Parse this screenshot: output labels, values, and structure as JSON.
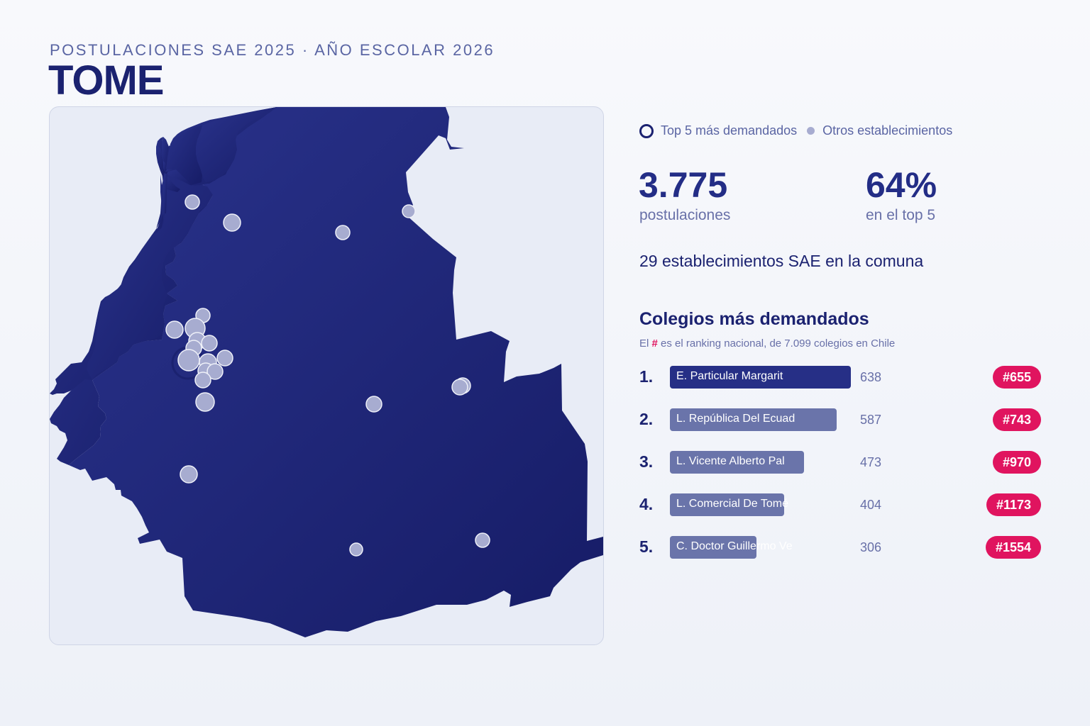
{
  "header": {
    "subtitle": "POSTULACIONES SAE 2025 · AÑO ESCOLAR 2026",
    "title": "TOME"
  },
  "legend": {
    "top5_label": "Top 5 más demandados",
    "others_label": "Otros establecimientos"
  },
  "stats": {
    "applications_value": "3.775",
    "applications_label": "postulaciones",
    "top5_share_value": "64%",
    "top5_share_label": "en el top 5",
    "schools_count_text": "29 establecimientos SAE en la comuna"
  },
  "ranking": {
    "title": "Colegios más demandados",
    "subtitle_pre": "El ",
    "subtitle_hash": "#",
    "subtitle_post": " es el ranking nacional, de 7.099 colegios en Chile",
    "max_value": 638,
    "items": [
      {
        "rank": "1.",
        "name": "E. Particular Margarit",
        "value": 638,
        "value_text": "638",
        "national_rank": "#655"
      },
      {
        "rank": "2.",
        "name": "L. República Del Ecuad",
        "value": 587,
        "value_text": "587",
        "national_rank": "#743"
      },
      {
        "rank": "3.",
        "name": "L. Vicente Alberto Pal",
        "value": 473,
        "value_text": "473",
        "national_rank": "#970"
      },
      {
        "rank": "4.",
        "name": "L. Comercial De Tomé",
        "value": 404,
        "value_text": "404",
        "national_rank": "#1173"
      },
      {
        "rank": "5.",
        "name": "C. Doctor Guillermo Ve",
        "value": 306,
        "value_text": "306",
        "national_rank": "#1554"
      }
    ]
  },
  "colors": {
    "territory": "#1f2a80",
    "accent": "#e0145f",
    "school_dot": "#a7acd0"
  }
}
